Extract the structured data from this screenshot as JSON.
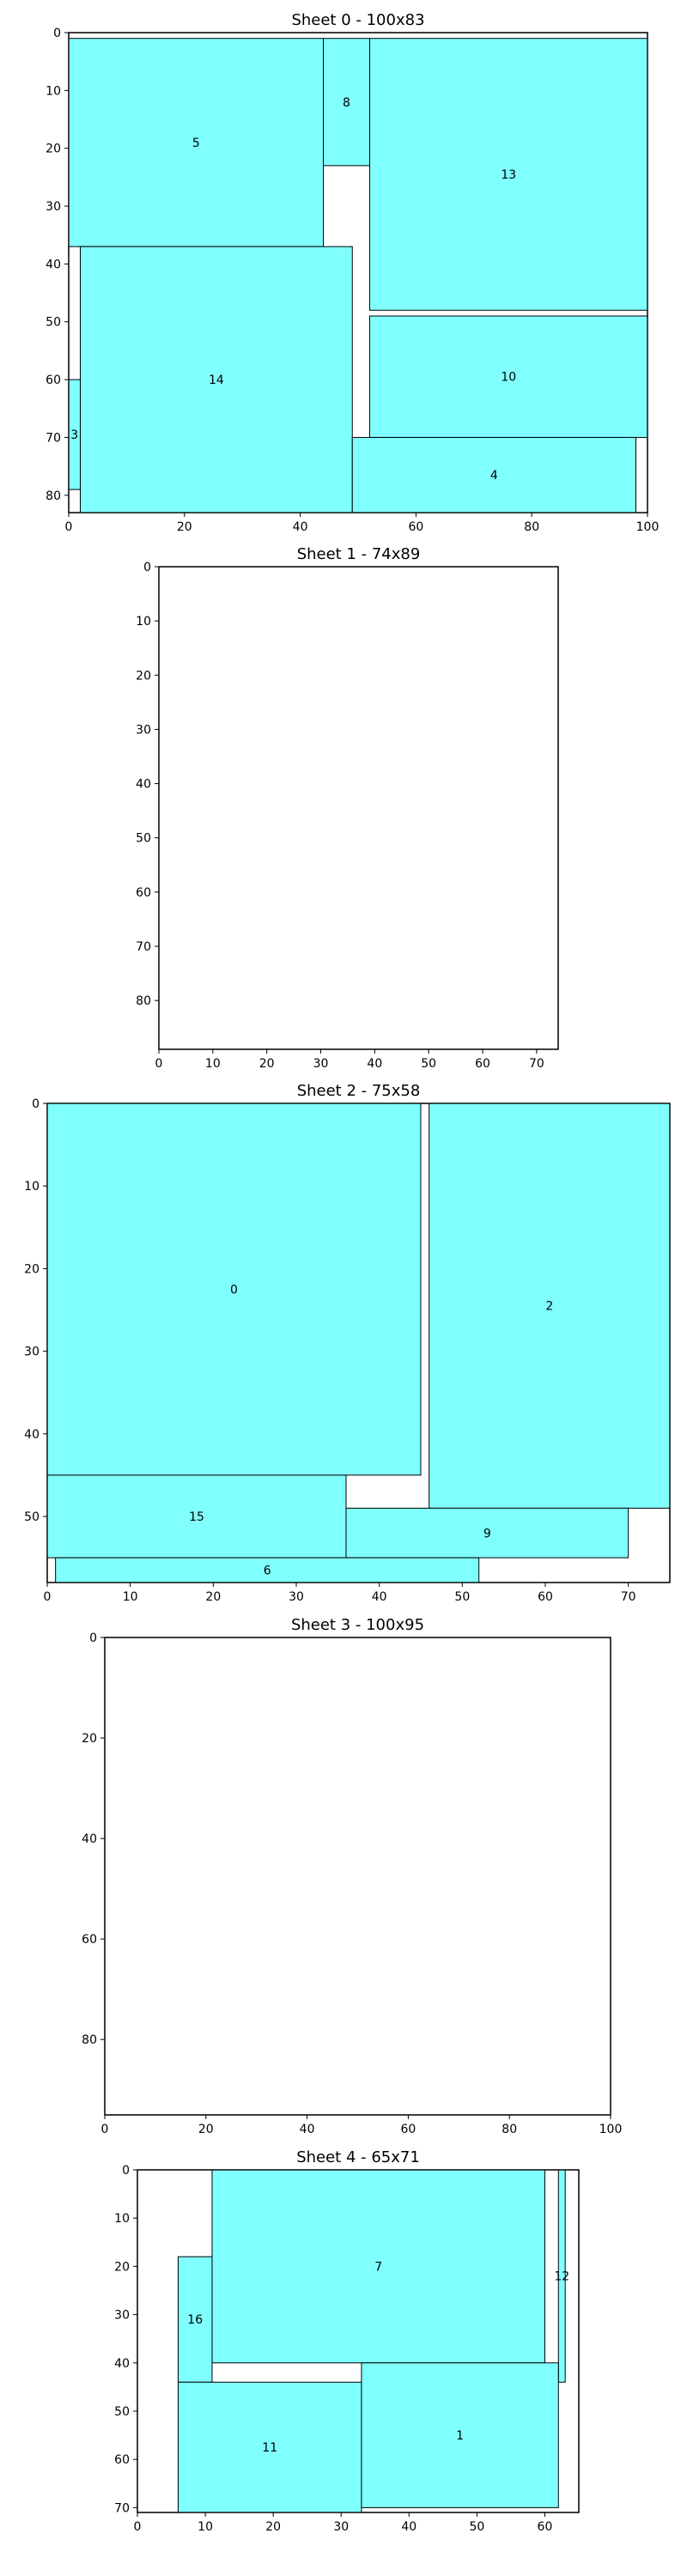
{
  "style": {
    "rect_fill": "#80ffff",
    "rect_stroke": "#000000"
  },
  "chart_data": [
    {
      "type": "rectangle-packing",
      "title": "Sheet 0 - 100x83",
      "width": 100,
      "height": 83,
      "xlim": [
        0,
        100
      ],
      "ylim": [
        83,
        0
      ],
      "xticks": [
        0,
        20,
        40,
        60,
        80,
        100
      ],
      "yticks": [
        0,
        10,
        20,
        30,
        40,
        50,
        60,
        70,
        80
      ],
      "rects": [
        {
          "label": "5",
          "x": 0,
          "y": 1,
          "w": 44,
          "h": 36
        },
        {
          "label": "8",
          "x": 44,
          "y": 1,
          "w": 8,
          "h": 22
        },
        {
          "label": "13",
          "x": 52,
          "y": 1,
          "w": 48,
          "h": 47
        },
        {
          "label": "14",
          "x": 2,
          "y": 37,
          "w": 47,
          "h": 46
        },
        {
          "label": "10",
          "x": 52,
          "y": 49,
          "w": 48,
          "h": 21
        },
        {
          "label": "3",
          "x": 0,
          "y": 60,
          "w": 2,
          "h": 19
        },
        {
          "label": "4",
          "x": 49,
          "y": 70,
          "w": 49,
          "h": 13
        }
      ]
    },
    {
      "type": "rectangle-packing",
      "title": "Sheet 1 - 74x89",
      "width": 74,
      "height": 89,
      "xlim": [
        0,
        74
      ],
      "ylim": [
        89,
        0
      ],
      "xticks": [
        0,
        10,
        20,
        30,
        40,
        50,
        60,
        70
      ],
      "yticks": [
        0,
        10,
        20,
        30,
        40,
        50,
        60,
        70,
        80
      ],
      "rects": []
    },
    {
      "type": "rectangle-packing",
      "title": "Sheet 2 - 75x58",
      "width": 75,
      "height": 58,
      "xlim": [
        0,
        75
      ],
      "ylim": [
        58,
        0
      ],
      "xticks": [
        0,
        10,
        20,
        30,
        40,
        50,
        60,
        70
      ],
      "yticks": [
        0,
        10,
        20,
        30,
        40,
        50
      ],
      "rects": [
        {
          "label": "0",
          "x": 0,
          "y": 0,
          "w": 45,
          "h": 45
        },
        {
          "label": "2",
          "x": 46,
          "y": 0,
          "w": 29,
          "h": 49
        },
        {
          "label": "15",
          "x": 0,
          "y": 45,
          "w": 36,
          "h": 10
        },
        {
          "label": "9",
          "x": 36,
          "y": 49,
          "w": 34,
          "h": 6
        },
        {
          "label": "6",
          "x": 1,
          "y": 55,
          "w": 51,
          "h": 3
        }
      ]
    },
    {
      "type": "rectangle-packing",
      "title": "Sheet 3 - 100x95",
      "width": 100,
      "height": 95,
      "xlim": [
        0,
        100
      ],
      "ylim": [
        95,
        0
      ],
      "xticks": [
        0,
        20,
        40,
        60,
        80,
        100
      ],
      "yticks": [
        0,
        20,
        40,
        60,
        80
      ],
      "rects": []
    },
    {
      "type": "rectangle-packing",
      "title": "Sheet 4 - 65x71",
      "width": 65,
      "height": 71,
      "xlim": [
        0,
        65
      ],
      "ylim": [
        71,
        0
      ],
      "xticks": [
        0,
        10,
        20,
        30,
        40,
        50,
        60
      ],
      "yticks": [
        0,
        10,
        20,
        30,
        40,
        50,
        60,
        70
      ],
      "rects": [
        {
          "label": "7",
          "x": 11,
          "y": 0,
          "w": 49,
          "h": 40
        },
        {
          "label": "12",
          "x": 62,
          "y": 0,
          "w": 1,
          "h": 44
        },
        {
          "label": "16",
          "x": 6,
          "y": 18,
          "w": 5,
          "h": 26
        },
        {
          "label": "11",
          "x": 6,
          "y": 44,
          "w": 27,
          "h": 27
        },
        {
          "label": "1",
          "x": 33,
          "y": 40,
          "w": 29,
          "h": 30
        }
      ]
    }
  ]
}
